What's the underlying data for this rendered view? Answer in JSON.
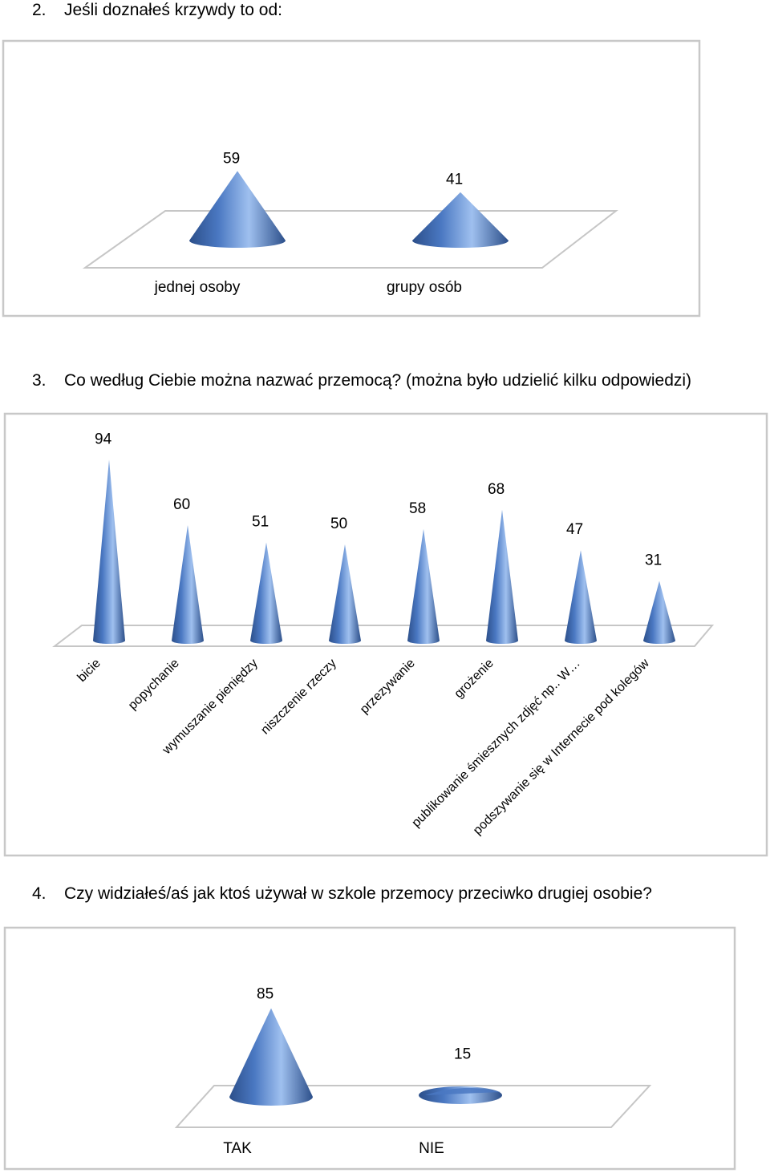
{
  "questions": [
    {
      "number": "2.",
      "text": "Jeśli doznałeś krzywdy  to od:"
    },
    {
      "number": "3.",
      "text": "Co według Ciebie można nazwać przemocą? (można było udzielić kilku odpowiedzi)"
    },
    {
      "number": "4.",
      "text": "Czy widziałeś/aś jak ktoś używał w szkole przemocy przeciwko drugiej osobie?"
    }
  ],
  "chart_data": [
    {
      "type": "bar",
      "shape": "3d-cone",
      "categories": [
        "jednej osoby",
        "grupy osób"
      ],
      "values": [
        59,
        41
      ],
      "data_labels": true,
      "grid": false,
      "legend": "none",
      "colors": {
        "cone": "#4a78c2",
        "cone_light": "#9fc0ef",
        "cone_dark": "#2c4f8a"
      }
    },
    {
      "type": "bar",
      "shape": "3d-cone",
      "categories": [
        "bicie",
        "popychanie",
        "wymuszanie pieniędzy",
        "niszczenie rzeczy",
        "przezywanie",
        "grożenie",
        "publikowanie śmiesznych zdjęć np.. W…",
        "podszywanie się w Internecie pod kolegów"
      ],
      "values": [
        94,
        60,
        51,
        50,
        58,
        68,
        47,
        31
      ],
      "data_labels": true,
      "grid": false,
      "legend": "none",
      "x_tick_rotation": "diagonal",
      "colors": {
        "cone": "#4a78c2",
        "cone_light": "#9fc0ef",
        "cone_dark": "#2c4f8a"
      }
    },
    {
      "type": "bar",
      "shape": "3d-cone",
      "categories": [
        "TAK",
        "NIE"
      ],
      "values": [
        85,
        15
      ],
      "data_labels": true,
      "grid": false,
      "legend": "none",
      "colors": {
        "cone": "#4a78c2",
        "cone_light": "#9fc0ef",
        "cone_dark": "#2c4f8a"
      }
    }
  ]
}
